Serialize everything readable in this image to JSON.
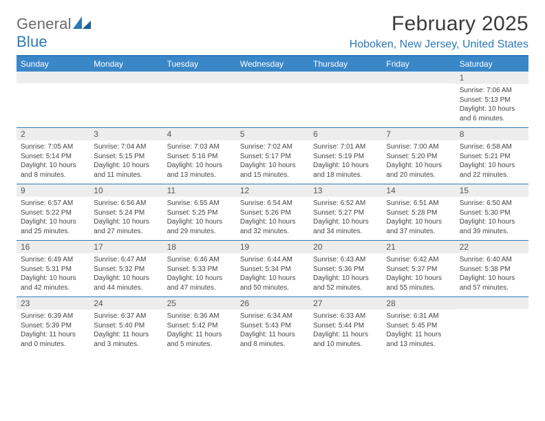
{
  "brand": {
    "word1": "General",
    "word2": "Blue"
  },
  "title": {
    "month": "February 2025",
    "location": "Hoboken, New Jersey, United States"
  },
  "colors": {
    "accent": "#2a78b8",
    "header_bg": "#3a87c8",
    "stripe": "#ededed",
    "text": "#333333",
    "muted": "#6a6a6a"
  },
  "dow": [
    "Sunday",
    "Monday",
    "Tuesday",
    "Wednesday",
    "Thursday",
    "Friday",
    "Saturday"
  ],
  "weeks": [
    [
      {
        "n": "",
        "sr": "",
        "ss": "",
        "dl": ""
      },
      {
        "n": "",
        "sr": "",
        "ss": "",
        "dl": ""
      },
      {
        "n": "",
        "sr": "",
        "ss": "",
        "dl": ""
      },
      {
        "n": "",
        "sr": "",
        "ss": "",
        "dl": ""
      },
      {
        "n": "",
        "sr": "",
        "ss": "",
        "dl": ""
      },
      {
        "n": "",
        "sr": "",
        "ss": "",
        "dl": ""
      },
      {
        "n": "1",
        "sr": "Sunrise: 7:06 AM",
        "ss": "Sunset: 5:13 PM",
        "dl": "Daylight: 10 hours and 6 minutes."
      }
    ],
    [
      {
        "n": "2",
        "sr": "Sunrise: 7:05 AM",
        "ss": "Sunset: 5:14 PM",
        "dl": "Daylight: 10 hours and 8 minutes."
      },
      {
        "n": "3",
        "sr": "Sunrise: 7:04 AM",
        "ss": "Sunset: 5:15 PM",
        "dl": "Daylight: 10 hours and 11 minutes."
      },
      {
        "n": "4",
        "sr": "Sunrise: 7:03 AM",
        "ss": "Sunset: 5:16 PM",
        "dl": "Daylight: 10 hours and 13 minutes."
      },
      {
        "n": "5",
        "sr": "Sunrise: 7:02 AM",
        "ss": "Sunset: 5:17 PM",
        "dl": "Daylight: 10 hours and 15 minutes."
      },
      {
        "n": "6",
        "sr": "Sunrise: 7:01 AM",
        "ss": "Sunset: 5:19 PM",
        "dl": "Daylight: 10 hours and 18 minutes."
      },
      {
        "n": "7",
        "sr": "Sunrise: 7:00 AM",
        "ss": "Sunset: 5:20 PM",
        "dl": "Daylight: 10 hours and 20 minutes."
      },
      {
        "n": "8",
        "sr": "Sunrise: 6:58 AM",
        "ss": "Sunset: 5:21 PM",
        "dl": "Daylight: 10 hours and 22 minutes."
      }
    ],
    [
      {
        "n": "9",
        "sr": "Sunrise: 6:57 AM",
        "ss": "Sunset: 5:22 PM",
        "dl": "Daylight: 10 hours and 25 minutes."
      },
      {
        "n": "10",
        "sr": "Sunrise: 6:56 AM",
        "ss": "Sunset: 5:24 PM",
        "dl": "Daylight: 10 hours and 27 minutes."
      },
      {
        "n": "11",
        "sr": "Sunrise: 6:55 AM",
        "ss": "Sunset: 5:25 PM",
        "dl": "Daylight: 10 hours and 29 minutes."
      },
      {
        "n": "12",
        "sr": "Sunrise: 6:54 AM",
        "ss": "Sunset: 5:26 PM",
        "dl": "Daylight: 10 hours and 32 minutes."
      },
      {
        "n": "13",
        "sr": "Sunrise: 6:52 AM",
        "ss": "Sunset: 5:27 PM",
        "dl": "Daylight: 10 hours and 34 minutes."
      },
      {
        "n": "14",
        "sr": "Sunrise: 6:51 AM",
        "ss": "Sunset: 5:28 PM",
        "dl": "Daylight: 10 hours and 37 minutes."
      },
      {
        "n": "15",
        "sr": "Sunrise: 6:50 AM",
        "ss": "Sunset: 5:30 PM",
        "dl": "Daylight: 10 hours and 39 minutes."
      }
    ],
    [
      {
        "n": "16",
        "sr": "Sunrise: 6:49 AM",
        "ss": "Sunset: 5:31 PM",
        "dl": "Daylight: 10 hours and 42 minutes."
      },
      {
        "n": "17",
        "sr": "Sunrise: 6:47 AM",
        "ss": "Sunset: 5:32 PM",
        "dl": "Daylight: 10 hours and 44 minutes."
      },
      {
        "n": "18",
        "sr": "Sunrise: 6:46 AM",
        "ss": "Sunset: 5:33 PM",
        "dl": "Daylight: 10 hours and 47 minutes."
      },
      {
        "n": "19",
        "sr": "Sunrise: 6:44 AM",
        "ss": "Sunset: 5:34 PM",
        "dl": "Daylight: 10 hours and 50 minutes."
      },
      {
        "n": "20",
        "sr": "Sunrise: 6:43 AM",
        "ss": "Sunset: 5:36 PM",
        "dl": "Daylight: 10 hours and 52 minutes."
      },
      {
        "n": "21",
        "sr": "Sunrise: 6:42 AM",
        "ss": "Sunset: 5:37 PM",
        "dl": "Daylight: 10 hours and 55 minutes."
      },
      {
        "n": "22",
        "sr": "Sunrise: 6:40 AM",
        "ss": "Sunset: 5:38 PM",
        "dl": "Daylight: 10 hours and 57 minutes."
      }
    ],
    [
      {
        "n": "23",
        "sr": "Sunrise: 6:39 AM",
        "ss": "Sunset: 5:39 PM",
        "dl": "Daylight: 11 hours and 0 minutes."
      },
      {
        "n": "24",
        "sr": "Sunrise: 6:37 AM",
        "ss": "Sunset: 5:40 PM",
        "dl": "Daylight: 11 hours and 3 minutes."
      },
      {
        "n": "25",
        "sr": "Sunrise: 6:36 AM",
        "ss": "Sunset: 5:42 PM",
        "dl": "Daylight: 11 hours and 5 minutes."
      },
      {
        "n": "26",
        "sr": "Sunrise: 6:34 AM",
        "ss": "Sunset: 5:43 PM",
        "dl": "Daylight: 11 hours and 8 minutes."
      },
      {
        "n": "27",
        "sr": "Sunrise: 6:33 AM",
        "ss": "Sunset: 5:44 PM",
        "dl": "Daylight: 11 hours and 10 minutes."
      },
      {
        "n": "28",
        "sr": "Sunrise: 6:31 AM",
        "ss": "Sunset: 5:45 PM",
        "dl": "Daylight: 11 hours and 13 minutes."
      },
      {
        "n": "",
        "sr": "",
        "ss": "",
        "dl": ""
      }
    ]
  ]
}
